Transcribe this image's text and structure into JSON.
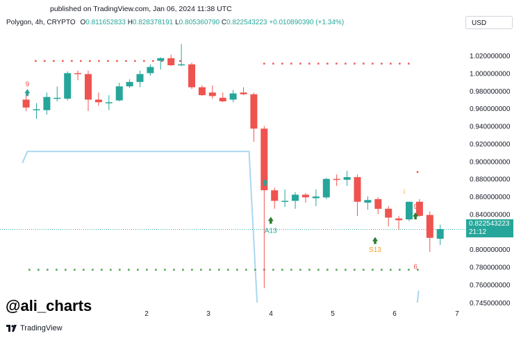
{
  "header": {
    "published": "published on TradingView.com, Jan 06, 2024 11:38 UTC"
  },
  "legend": {
    "symbol": "Polygon, 4h, CRYPTO",
    "o_label": "O",
    "o": "0.811652833",
    "h_label": "H",
    "h": "0.828378191",
    "l_label": "L",
    "l": "0.805360790",
    "c_label": "C",
    "c": "0.822543223",
    "change": "+0.010890390 (+1.34%)"
  },
  "currency_button": "USD",
  "watermark": "@ali_charts",
  "footer": {
    "brand": "TradingView"
  },
  "last_price": {
    "value": "0.822543223",
    "countdown": "21:12"
  },
  "colors": {
    "up": "#26a69a",
    "down": "#ef5350",
    "trend": "#a8d8ef",
    "up_signal": "#2e7d32"
  },
  "chart_data": {
    "type": "candlestick",
    "ylim": [
      0.745,
      1.04
    ],
    "y_ticks": [
      {
        "value": 1.02,
        "label": "1.020000000"
      },
      {
        "value": 1.0,
        "label": "1.000000000"
      },
      {
        "value": 0.98,
        "label": "0.980000000"
      },
      {
        "value": 0.96,
        "label": "0.960000000"
      },
      {
        "value": 0.94,
        "label": "0.940000000"
      },
      {
        "value": 0.92,
        "label": "0.920000000"
      },
      {
        "value": 0.9,
        "label": "0.900000000"
      },
      {
        "value": 0.88,
        "label": "0.880000000"
      },
      {
        "value": 0.86,
        "label": "0.860000000"
      },
      {
        "value": 0.84,
        "label": "0.840000000"
      },
      {
        "value": 0.82,
        "label": "0.820000000"
      },
      {
        "value": 0.8,
        "label": "0.800000000"
      },
      {
        "value": 0.78,
        "label": "0.780000000"
      },
      {
        "value": 0.76,
        "label": "0.760000000"
      },
      {
        "value": 0.745,
        "label": "0.745000000"
      }
    ],
    "x_ticks": [
      {
        "value": 2,
        "label": "2"
      },
      {
        "value": 3,
        "label": "3"
      },
      {
        "value": 4,
        "label": "4"
      },
      {
        "value": 5,
        "label": "5"
      },
      {
        "value": 6,
        "label": "6"
      },
      {
        "value": 7,
        "label": "7"
      }
    ],
    "candle_x_start": 0.06,
    "candle_x_step": 0.1667,
    "candles": [
      {
        "o": 0.97,
        "h": 0.977,
        "l": 0.957,
        "c": 0.961
      },
      {
        "o": 0.958,
        "h": 0.966,
        "l": 0.948,
        "c": 0.959
      },
      {
        "o": 0.958,
        "h": 0.978,
        "l": 0.953,
        "c": 0.973
      },
      {
        "o": 0.972,
        "h": 0.985,
        "l": 0.968,
        "c": 0.972
      },
      {
        "o": 0.971,
        "h": 1.002,
        "l": 0.969,
        "c": 1.0
      },
      {
        "o": 1.0,
        "h": 1.003,
        "l": 0.992,
        "c": 0.999
      },
      {
        "o": 0.999,
        "h": 1.003,
        "l": 0.957,
        "c": 0.97
      },
      {
        "o": 0.97,
        "h": 0.978,
        "l": 0.963,
        "c": 0.967
      },
      {
        "o": 0.967,
        "h": 0.975,
        "l": 0.958,
        "c": 0.967
      },
      {
        "o": 0.969,
        "h": 0.989,
        "l": 0.968,
        "c": 0.985
      },
      {
        "o": 0.985,
        "h": 0.993,
        "l": 0.983,
        "c": 0.99
      },
      {
        "o": 0.99,
        "h": 1.003,
        "l": 0.984,
        "c": 0.999
      },
      {
        "o": 1.0,
        "h": 1.01,
        "l": 0.997,
        "c": 1.007
      },
      {
        "o": 1.014,
        "h": 1.018,
        "l": 1.004,
        "c": 1.017
      },
      {
        "o": 1.017,
        "h": 1.021,
        "l": 1.008,
        "c": 1.009
      },
      {
        "o": 1.01,
        "h": 1.033,
        "l": 1.008,
        "c": 1.01
      },
      {
        "o": 1.01,
        "h": 1.012,
        "l": 0.982,
        "c": 0.984
      },
      {
        "o": 0.984,
        "h": 0.986,
        "l": 0.974,
        "c": 0.975
      },
      {
        "o": 0.978,
        "h": 0.986,
        "l": 0.971,
        "c": 0.974
      },
      {
        "o": 0.972,
        "h": 0.978,
        "l": 0.967,
        "c": 0.968
      },
      {
        "o": 0.97,
        "h": 0.981,
        "l": 0.967,
        "c": 0.977
      },
      {
        "o": 0.978,
        "h": 0.984,
        "l": 0.975,
        "c": 0.976
      },
      {
        "o": 0.976,
        "h": 0.978,
        "l": 0.922,
        "c": 0.937
      },
      {
        "o": 0.937,
        "h": 0.94,
        "l": 0.757,
        "c": 0.867
      },
      {
        "o": 0.867,
        "h": 0.87,
        "l": 0.846,
        "c": 0.855
      },
      {
        "o": 0.855,
        "h": 0.868,
        "l": 0.848,
        "c": 0.855
      },
      {
        "o": 0.855,
        "h": 0.865,
        "l": 0.846,
        "c": 0.862
      },
      {
        "o": 0.862,
        "h": 0.864,
        "l": 0.853,
        "c": 0.859
      },
      {
        "o": 0.858,
        "h": 0.868,
        "l": 0.849,
        "c": 0.86
      },
      {
        "o": 0.859,
        "h": 0.881,
        "l": 0.857,
        "c": 0.88
      },
      {
        "o": 0.88,
        "h": 0.885,
        "l": 0.872,
        "c": 0.879
      },
      {
        "o": 0.879,
        "h": 0.889,
        "l": 0.872,
        "c": 0.882
      },
      {
        "o": 0.882,
        "h": 0.885,
        "l": 0.838,
        "c": 0.854
      },
      {
        "o": 0.853,
        "h": 0.86,
        "l": 0.845,
        "c": 0.856
      },
      {
        "o": 0.857,
        "h": 0.859,
        "l": 0.84,
        "c": 0.846
      },
      {
        "o": 0.846,
        "h": 0.849,
        "l": 0.826,
        "c": 0.836
      },
      {
        "o": 0.835,
        "h": 0.838,
        "l": 0.822,
        "c": 0.833
      },
      {
        "o": 0.834,
        "h": 0.854,
        "l": 0.832,
        "c": 0.854
      },
      {
        "o": 0.854,
        "h": 0.857,
        "l": 0.837,
        "c": 0.838
      },
      {
        "o": 0.839,
        "h": 0.843,
        "l": 0.797,
        "c": 0.813
      },
      {
        "o": 0.812,
        "h": 0.828,
        "l": 0.805,
        "c": 0.823
      }
    ],
    "trend_line": [
      {
        "x": 0.0,
        "y": 0.898
      },
      {
        "x": 0.08,
        "y": 0.911
      },
      {
        "x": 3.65,
        "y": 0.911
      },
      {
        "x": 3.78,
        "y": 0.745
      }
    ],
    "trend_tail": [
      {
        "x": 6.36,
        "y": 0.745
      },
      {
        "x": 6.38,
        "y": 0.755
      }
    ],
    "red_dots": [
      {
        "x_from": 0.2,
        "x_to": 2.6,
        "y": 1.014
      },
      {
        "x_from": 3.88,
        "x_to": 6.25,
        "y": 1.011
      }
    ],
    "green_dots": {
      "x_from": 0.1,
      "x_to": 6.4,
      "y": 0.777
    },
    "signals": [
      {
        "type": "up",
        "label": "9",
        "label_color": "#ef5350",
        "x": 0.08,
        "y_label": 0.988,
        "y_arrow": 0.978,
        "arrow_color": "#26a69a",
        "label_above": true
      },
      {
        "type": "up",
        "label": "9",
        "label_color": "#ef5350",
        "x": 3.91,
        "y_label": 0.887,
        "y_arrow": 0.876,
        "arrow_color": "#26a69a",
        "label_above": true
      },
      {
        "type": "up",
        "label": "A13",
        "label_color": "#26a69a",
        "x": 4.0,
        "y_label": 0.822,
        "y_arrow": 0.833,
        "arrow_color": "#2e7d32",
        "label_above": false
      },
      {
        "type": "up",
        "label": "S13",
        "label_color": "#f0a030",
        "x": 5.68,
        "y_label": 0.8,
        "y_arrow": 0.81,
        "arrow_color": "#2e7d32",
        "label_above": false
      },
      {
        "type": "up",
        "label": "9",
        "label_color": "#ef5350",
        "x": 6.33,
        "y_label": 0.849,
        "y_arrow": 0.838,
        "arrow_color": "#2e7d32",
        "label_above": true
      },
      {
        "type": "mark",
        "label": "6",
        "label_color": "#ef5350",
        "x": 6.33,
        "y_label": 0.781,
        "y_arrow": null,
        "arrow_color": null,
        "label_above": false
      },
      {
        "type": "mark",
        "label": "i",
        "label_color": "#f0a030",
        "x": 6.15,
        "y_label": 0.866,
        "y_arrow": null,
        "arrow_color": null,
        "label_above": false
      },
      {
        "type": "dot",
        "label": "",
        "label_color": "#ef5350",
        "x": 6.36,
        "y_label": 0.888,
        "y_arrow": null,
        "arrow_color": null,
        "label_above": false
      }
    ],
    "last_price_line": 0.8225,
    "grid": false
  }
}
